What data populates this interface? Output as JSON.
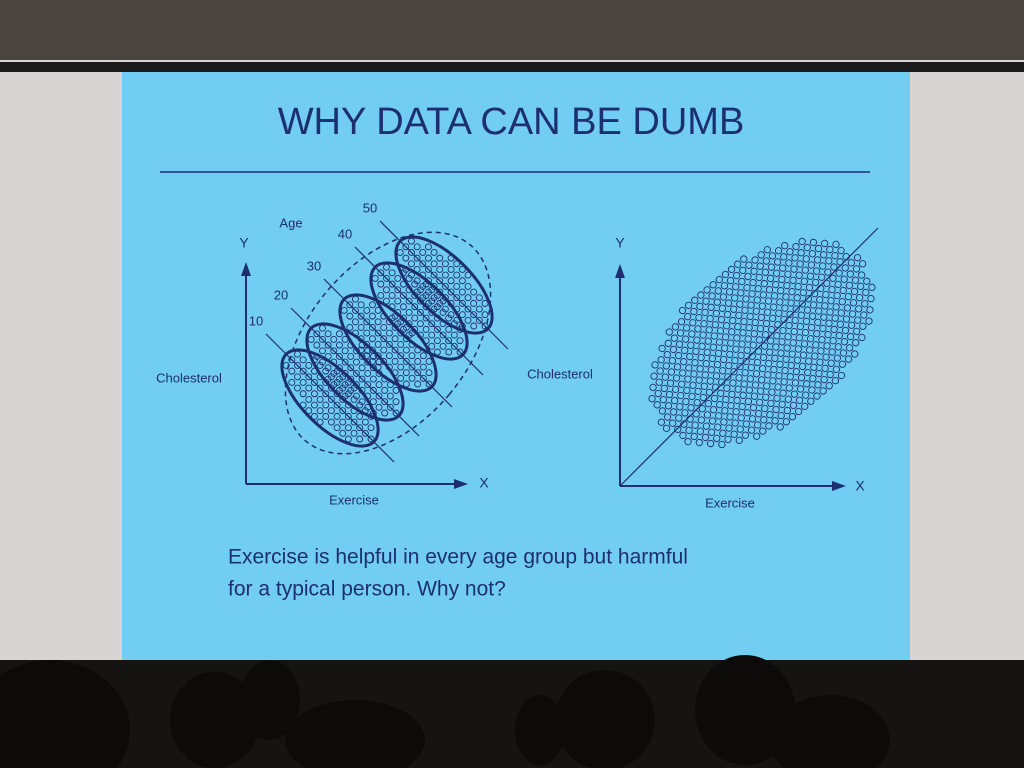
{
  "slide": {
    "title": "WHY DATA CAN BE DUMB",
    "left_diagram": {
      "y_axis": "Y",
      "x_axis": "X",
      "y_label": "Cholesterol",
      "x_label": "Exercise",
      "group_title": "Age",
      "groups": [
        "10",
        "20",
        "30",
        "40",
        "50"
      ]
    },
    "right_diagram": {
      "y_axis": "Y",
      "x_axis": "X",
      "y_label": "Cholesterol",
      "x_label": "Exercise"
    },
    "caption": [
      "Exercise is helpful in every age group but harmful",
      "for a typical person.  Why not?"
    ]
  }
}
